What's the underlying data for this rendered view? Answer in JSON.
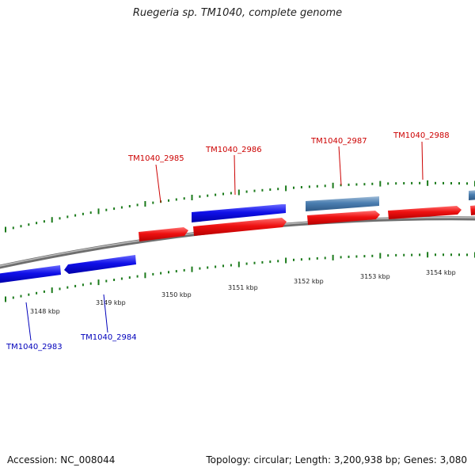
{
  "title": "Ruegeria sp. TM1040, complete genome",
  "footer": {
    "accession": "Accession: NC_008044",
    "summary": "Topology: circular; Length: 3,200,938 bp; Genes: 3,080"
  },
  "colors": {
    "backbone": "#8a8a8a",
    "forward_gene": "#ee1111",
    "reverse_gene": "#1010e8",
    "steelblue_gene": "#4a7db0",
    "tick": "#1a7a1a",
    "forward_label": "#cc0000",
    "reverse_label": "#0000bb"
  },
  "tick_labels": [
    "3148 kbp",
    "3149 kbp",
    "3150 kbp",
    "3151 kbp",
    "3152 kbp",
    "3153 kbp",
    "3154 kbp"
  ],
  "gene_labels": {
    "forward": [
      "TM1040_2985",
      "TM1040_2986",
      "TM1040_2987",
      "TM1040_2988"
    ],
    "reverse": [
      "TM1040_2983",
      "TM1040_2984"
    ]
  }
}
